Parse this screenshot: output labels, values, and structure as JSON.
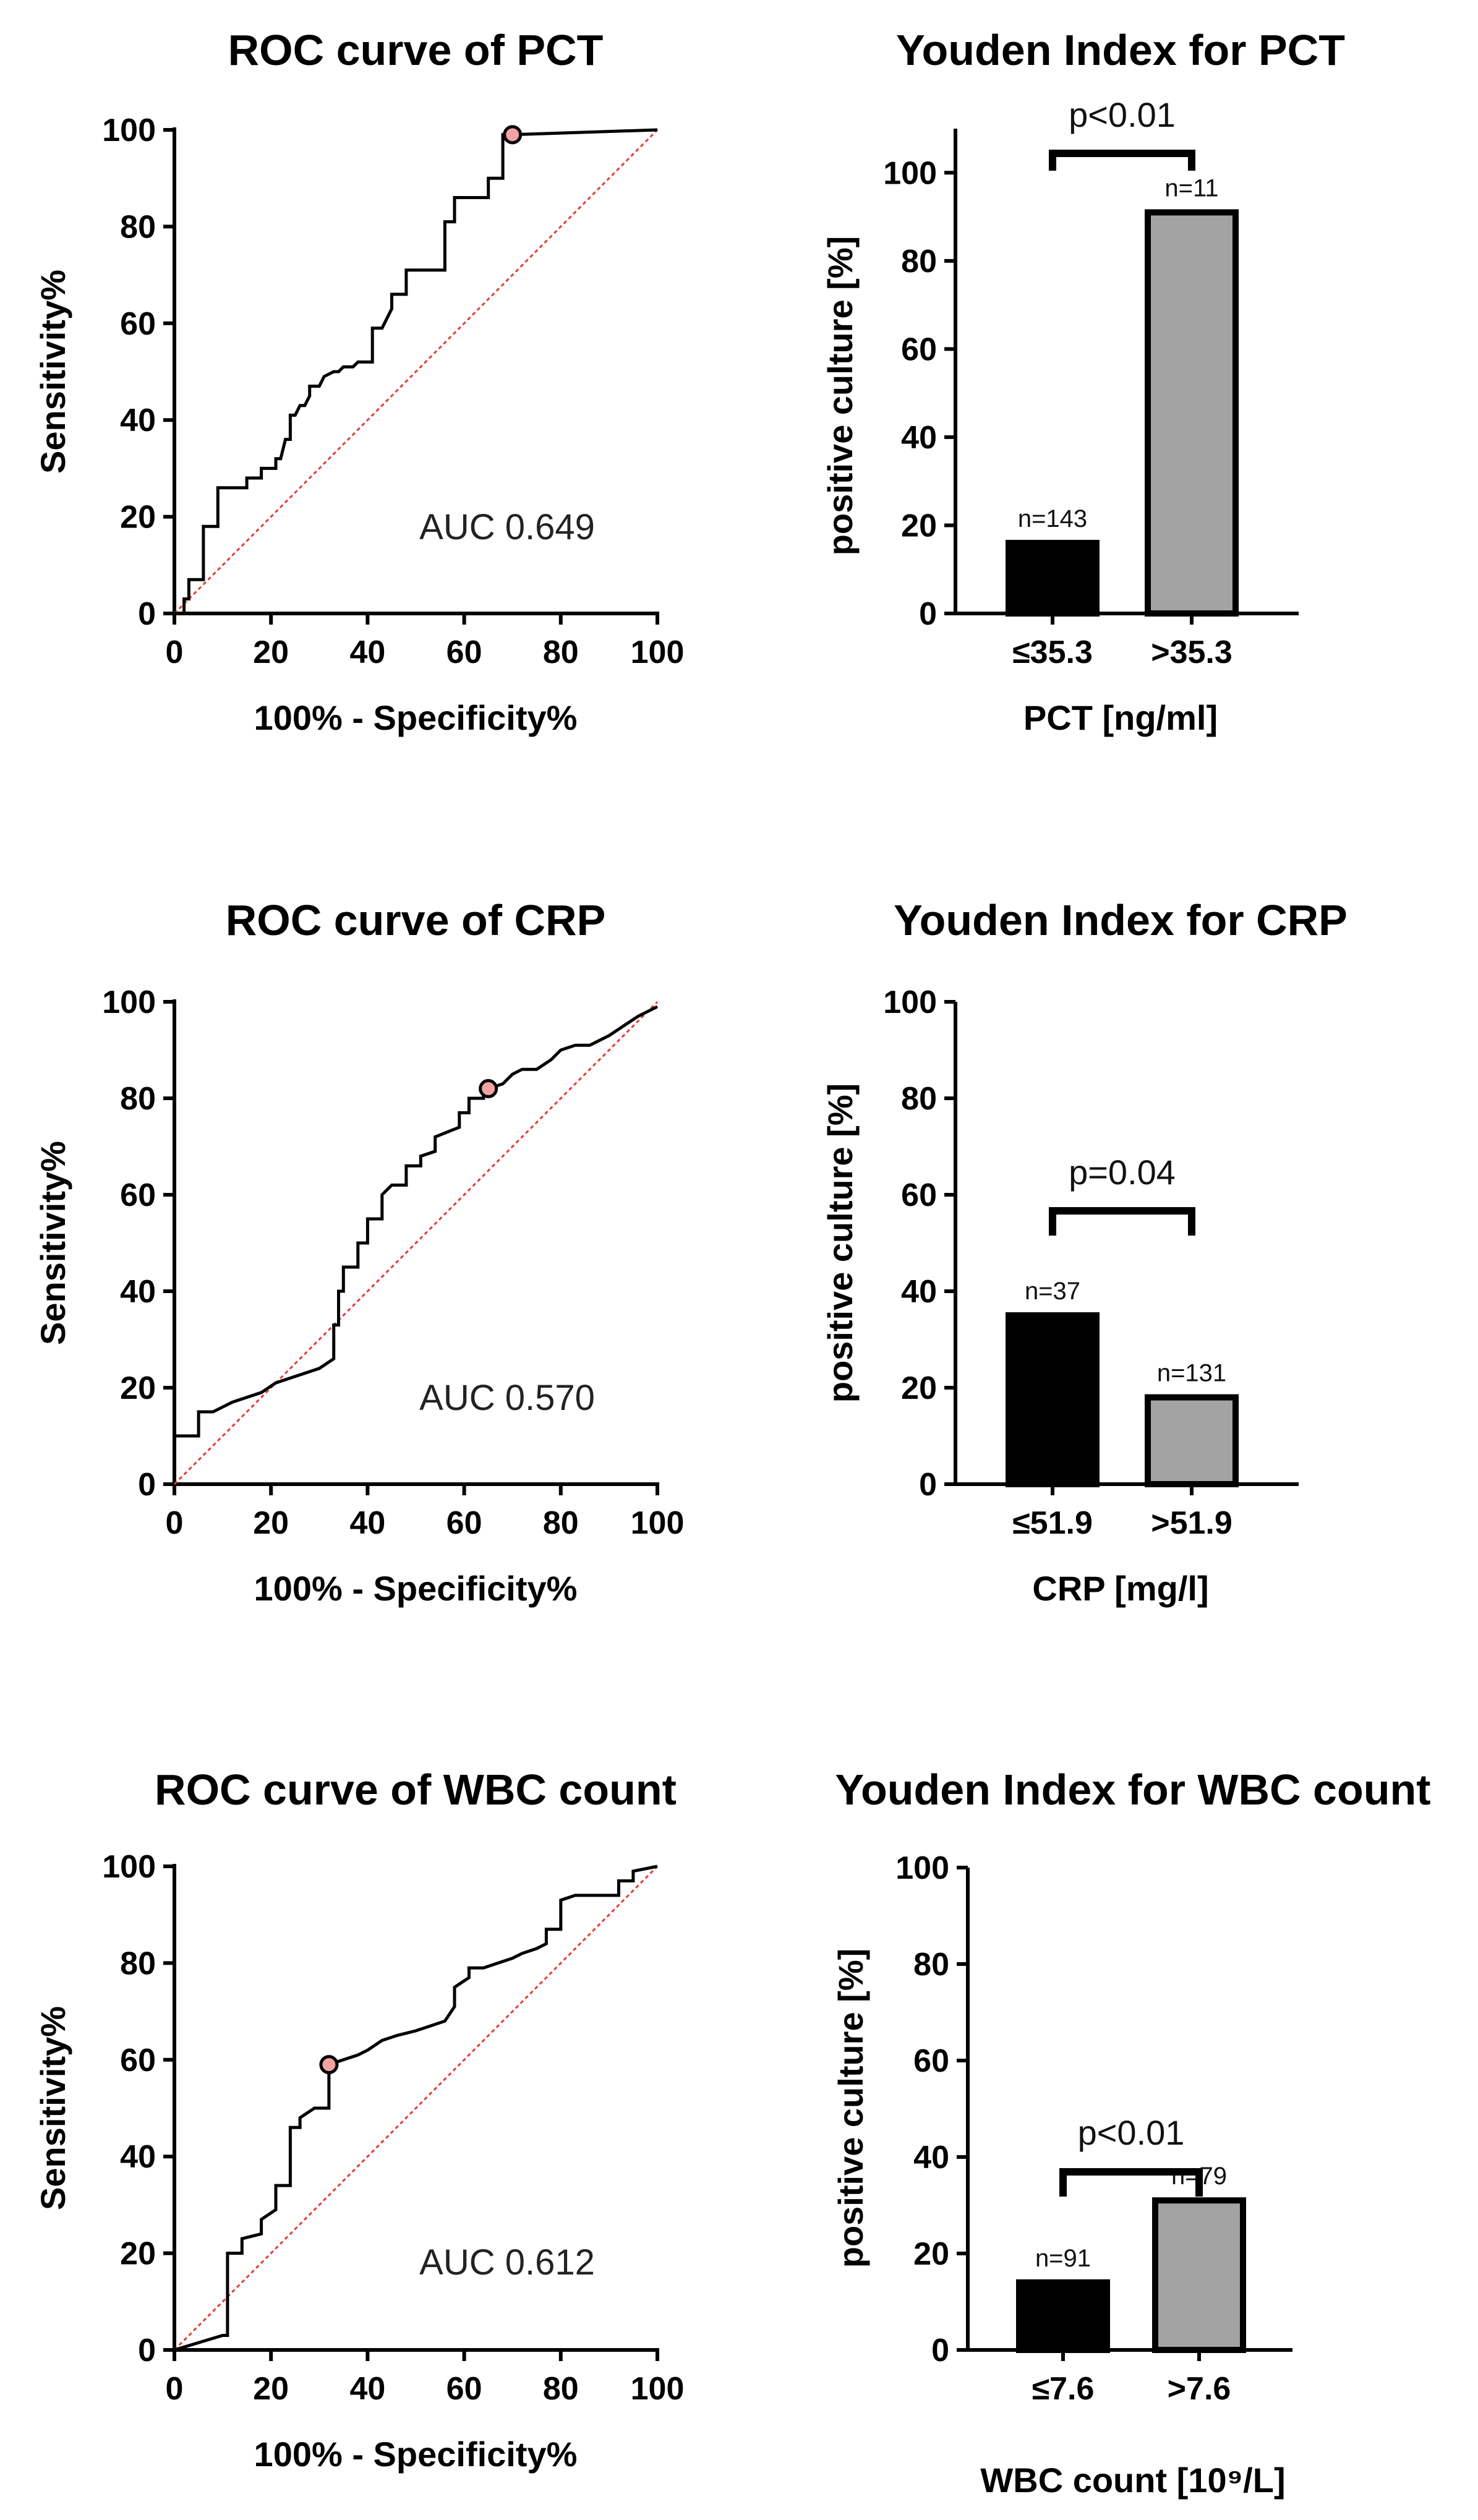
{
  "chart_data": [
    {
      "type": "line",
      "title": "ROC curve of PCT",
      "xlabel": "100% - Specificity%",
      "ylabel": "Sensitivity%",
      "xlim": [
        0,
        100
      ],
      "ylim": [
        0,
        100
      ],
      "xticks": [
        "0",
        "20",
        "40",
        "60",
        "80",
        "100"
      ],
      "yticks": [
        "0",
        "20",
        "40",
        "60",
        "80",
        "100"
      ],
      "annotation": "AUC 0.649",
      "cutoff_point": {
        "x": 70,
        "y": 99
      },
      "series": [
        {
          "name": "ROC",
          "x": [
            0,
            2,
            2,
            3,
            3,
            6,
            6,
            9,
            9,
            12,
            15,
            15,
            18,
            18,
            21,
            21,
            22,
            23,
            24,
            24,
            25,
            26,
            27,
            28,
            28,
            30,
            31,
            33,
            34,
            35,
            37,
            38,
            41,
            41,
            43,
            45,
            45,
            48,
            48,
            51,
            51,
            56,
            56,
            58,
            58,
            61,
            61,
            65,
            65,
            68,
            68,
            70,
            70,
            100
          ],
          "y": [
            0,
            0,
            3,
            3,
            7,
            7,
            18,
            18,
            26,
            26,
            26,
            28,
            28,
            30,
            30,
            32,
            32,
            36,
            36,
            41,
            41,
            43,
            43,
            45,
            47,
            47,
            49,
            50,
            50,
            51,
            51,
            52,
            52,
            59,
            59,
            63,
            66,
            66,
            71,
            71,
            71,
            71,
            81,
            81,
            86,
            86,
            86,
            86,
            90,
            90,
            99,
            99,
            99,
            100
          ]
        },
        {
          "name": "Reference",
          "x": [
            0,
            100
          ],
          "y": [
            0,
            100
          ]
        }
      ]
    },
    {
      "type": "bar",
      "title": "Youden Index for PCT",
      "xlabel": "PCT [ng/ml]",
      "ylabel": "positive culture [%]",
      "ylim": [
        0,
        110
      ],
      "yticks": [
        "0",
        "20",
        "40",
        "60",
        "80",
        "100"
      ],
      "categories": [
        "≤35.3",
        ">35.3"
      ],
      "values": [
        16,
        91
      ],
      "n_labels": [
        "n=143",
        "n=11"
      ],
      "significance": "p<0.01",
      "colors": [
        "#000000",
        "#a3a3a3"
      ]
    },
    {
      "type": "line",
      "title": "ROC curve of CRP",
      "xlabel": "100% - Specificity%",
      "ylabel": "Sensitivity%",
      "xlim": [
        0,
        100
      ],
      "ylim": [
        0,
        100
      ],
      "xticks": [
        "0",
        "20",
        "40",
        "60",
        "80",
        "100"
      ],
      "yticks": [
        "0",
        "20",
        "40",
        "60",
        "80",
        "100"
      ],
      "annotation": "AUC 0.570",
      "cutoff_point": {
        "x": 65,
        "y": 82
      },
      "series": [
        {
          "name": "ROC",
          "x": [
            0,
            5,
            5,
            8,
            10,
            12,
            15,
            18,
            21,
            24,
            27,
            30,
            33,
            33,
            34,
            34,
            35,
            35,
            38,
            38,
            40,
            40,
            43,
            43,
            45,
            48,
            48,
            51,
            51,
            54,
            54,
            59,
            59,
            61,
            61,
            64,
            64,
            65,
            68,
            70,
            72,
            75,
            78,
            80,
            83,
            86,
            90,
            93,
            96,
            100
          ],
          "y": [
            10,
            10,
            15,
            15,
            16,
            17,
            18,
            19,
            21,
            22,
            23,
            24,
            26,
            33,
            33,
            40,
            40,
            45,
            45,
            50,
            50,
            55,
            55,
            60,
            62,
            62,
            66,
            66,
            68,
            69,
            72,
            74,
            77,
            77,
            80,
            80,
            81,
            82,
            83,
            85,
            86,
            86,
            88,
            90,
            91,
            91,
            93,
            95,
            97,
            99
          ]
        },
        {
          "name": "Reference",
          "x": [
            0,
            100
          ],
          "y": [
            0,
            100
          ]
        }
      ]
    },
    {
      "type": "bar",
      "title": "Youden Index for CRP",
      "xlabel": "CRP [mg/l]",
      "ylabel": "positive culture [%]",
      "ylim": [
        0,
        100
      ],
      "yticks": [
        "0",
        "20",
        "40",
        "60",
        "80",
        "100"
      ],
      "categories": [
        "≤51.9",
        ">51.9"
      ],
      "values": [
        35,
        18
      ],
      "n_labels": [
        "n=37",
        "n=131"
      ],
      "significance": "p=0.04",
      "colors": [
        "#000000",
        "#a3a3a3"
      ]
    },
    {
      "type": "line",
      "title": "ROC curve of WBC count",
      "xlabel": "100% - Specificity%",
      "ylabel": "Sensitivity%",
      "xlim": [
        0,
        100
      ],
      "ylim": [
        0,
        100
      ],
      "xticks": [
        "0",
        "20",
        "40",
        "60",
        "80",
        "100"
      ],
      "yticks": [
        "0",
        "20",
        "40",
        "60",
        "80",
        "100"
      ],
      "annotation": "AUC 0.612",
      "cutoff_point": {
        "x": 32,
        "y": 59
      },
      "series": [
        {
          "name": "ROC",
          "x": [
            0,
            10,
            10,
            11,
            11,
            14,
            14,
            18,
            18,
            21,
            21,
            24,
            24,
            26,
            26,
            29,
            29,
            32,
            32,
            35,
            38,
            40,
            43,
            46,
            50,
            53,
            56,
            58,
            58,
            61,
            61,
            64,
            67,
            70,
            72,
            75,
            77,
            77,
            80,
            80,
            83,
            86,
            89,
            92,
            92,
            95,
            95,
            100
          ],
          "y": [
            0,
            3,
            3,
            3,
            20,
            20,
            23,
            24,
            27,
            29,
            34,
            34,
            46,
            46,
            48,
            50,
            50,
            50,
            59,
            60,
            61,
            62,
            64,
            65,
            66,
            67,
            68,
            71,
            75,
            77,
            79,
            79,
            80,
            81,
            82,
            83,
            84,
            87,
            87,
            93,
            94,
            94,
            94,
            94,
            97,
            97,
            99,
            100
          ]
        },
        {
          "name": "Reference",
          "x": [
            0,
            100
          ],
          "y": [
            0,
            100
          ]
        }
      ]
    },
    {
      "type": "bar",
      "title": "Youden Index for WBC count",
      "xlabel": "WBC count [10⁹/L]",
      "ylabel": "positive culture [%]",
      "ylim": [
        0,
        100
      ],
      "yticks": [
        "0",
        "20",
        "40",
        "60",
        "80",
        "100"
      ],
      "categories": [
        "≤7.6",
        ">7.6"
      ],
      "values": [
        14,
        31
      ],
      "n_labels": [
        "n=91",
        "n=79"
      ],
      "significance": "p<0.01",
      "colors": [
        "#000000",
        "#a3a3a3"
      ]
    }
  ],
  "colors": {
    "roc_line": "#000000",
    "reference_line": "#e53935",
    "cutoff_fill": "#f4a3a3",
    "axis": "#000000"
  }
}
